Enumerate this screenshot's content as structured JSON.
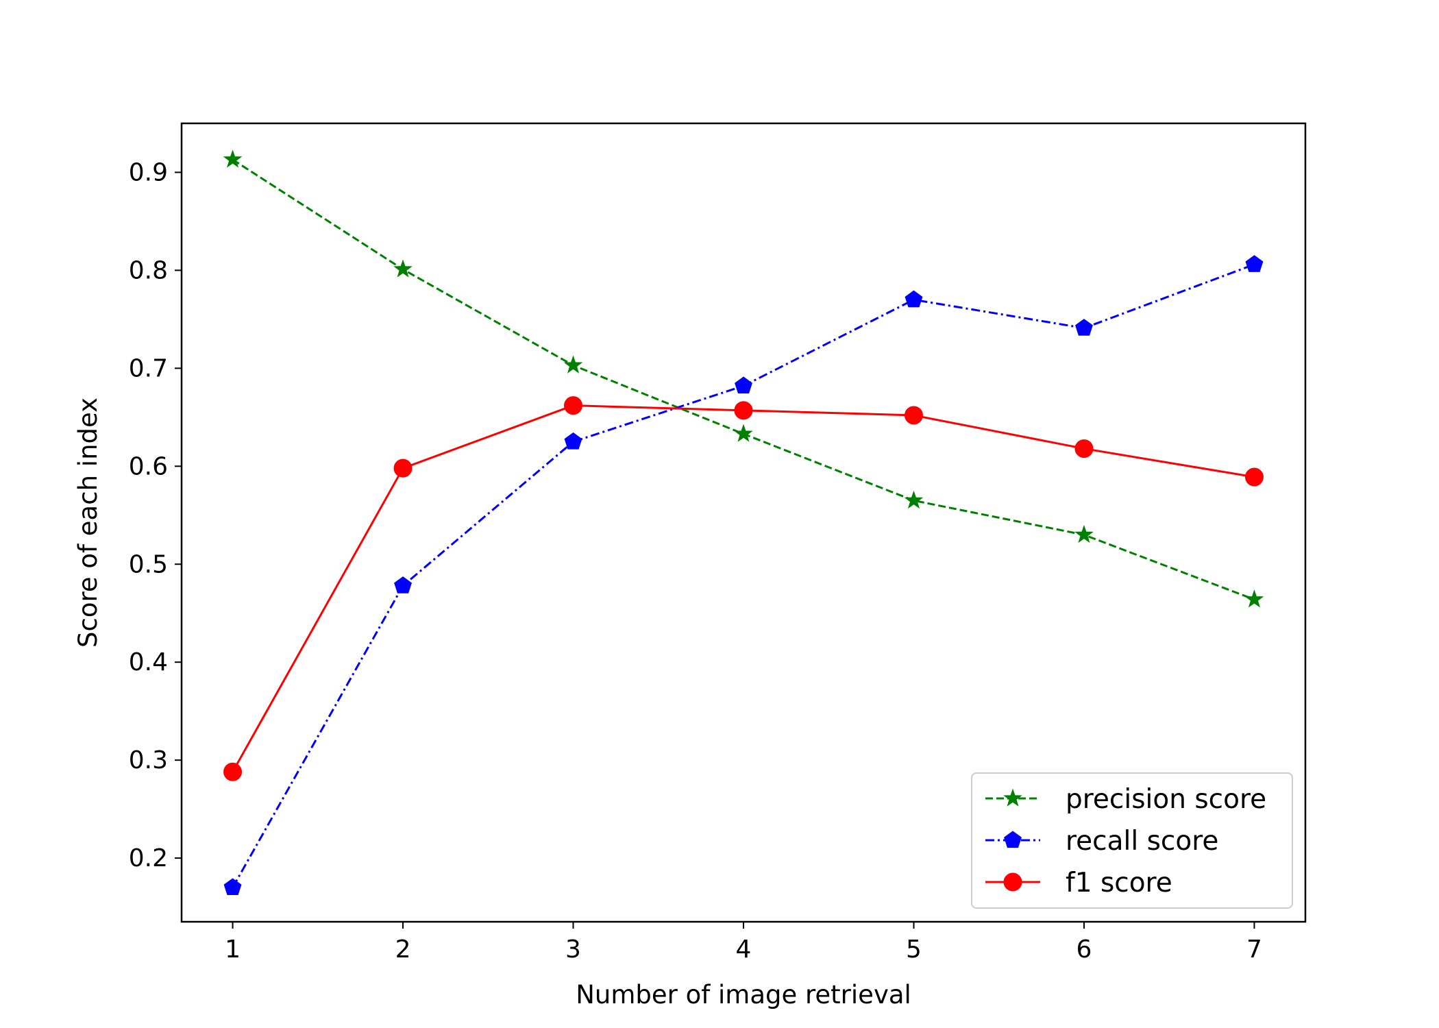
{
  "chart_data": {
    "type": "line",
    "title": "",
    "xlabel": "Number of image retrieval",
    "ylabel": "Score of each index",
    "x": [
      1,
      2,
      3,
      4,
      5,
      6,
      7
    ],
    "xlim": [
      0.7,
      7.3
    ],
    "ylim": [
      0.135,
      0.95
    ],
    "xticks": [
      1,
      2,
      3,
      4,
      5,
      6,
      7
    ],
    "yticks": [
      0.2,
      0.3,
      0.4,
      0.5,
      0.6,
      0.7,
      0.8,
      0.9
    ],
    "grid": false,
    "legend_position": "lower-right",
    "series": [
      {
        "name": "precision score",
        "color": "#008000",
        "linestyle": "dashed",
        "marker": "star",
        "values": [
          0.913,
          0.801,
          0.703,
          0.633,
          0.565,
          0.53,
          0.464
        ]
      },
      {
        "name": "recall score",
        "color": "#0000ff",
        "linestyle": "dashdot",
        "marker": "pentagon",
        "values": [
          0.17,
          0.478,
          0.625,
          0.682,
          0.77,
          0.741,
          0.806
        ]
      },
      {
        "name": "f1 score",
        "color": "#ff0000",
        "linestyle": "solid",
        "marker": "circle",
        "values": [
          0.288,
          0.598,
          0.662,
          0.657,
          0.652,
          0.618,
          0.589
        ]
      }
    ]
  }
}
